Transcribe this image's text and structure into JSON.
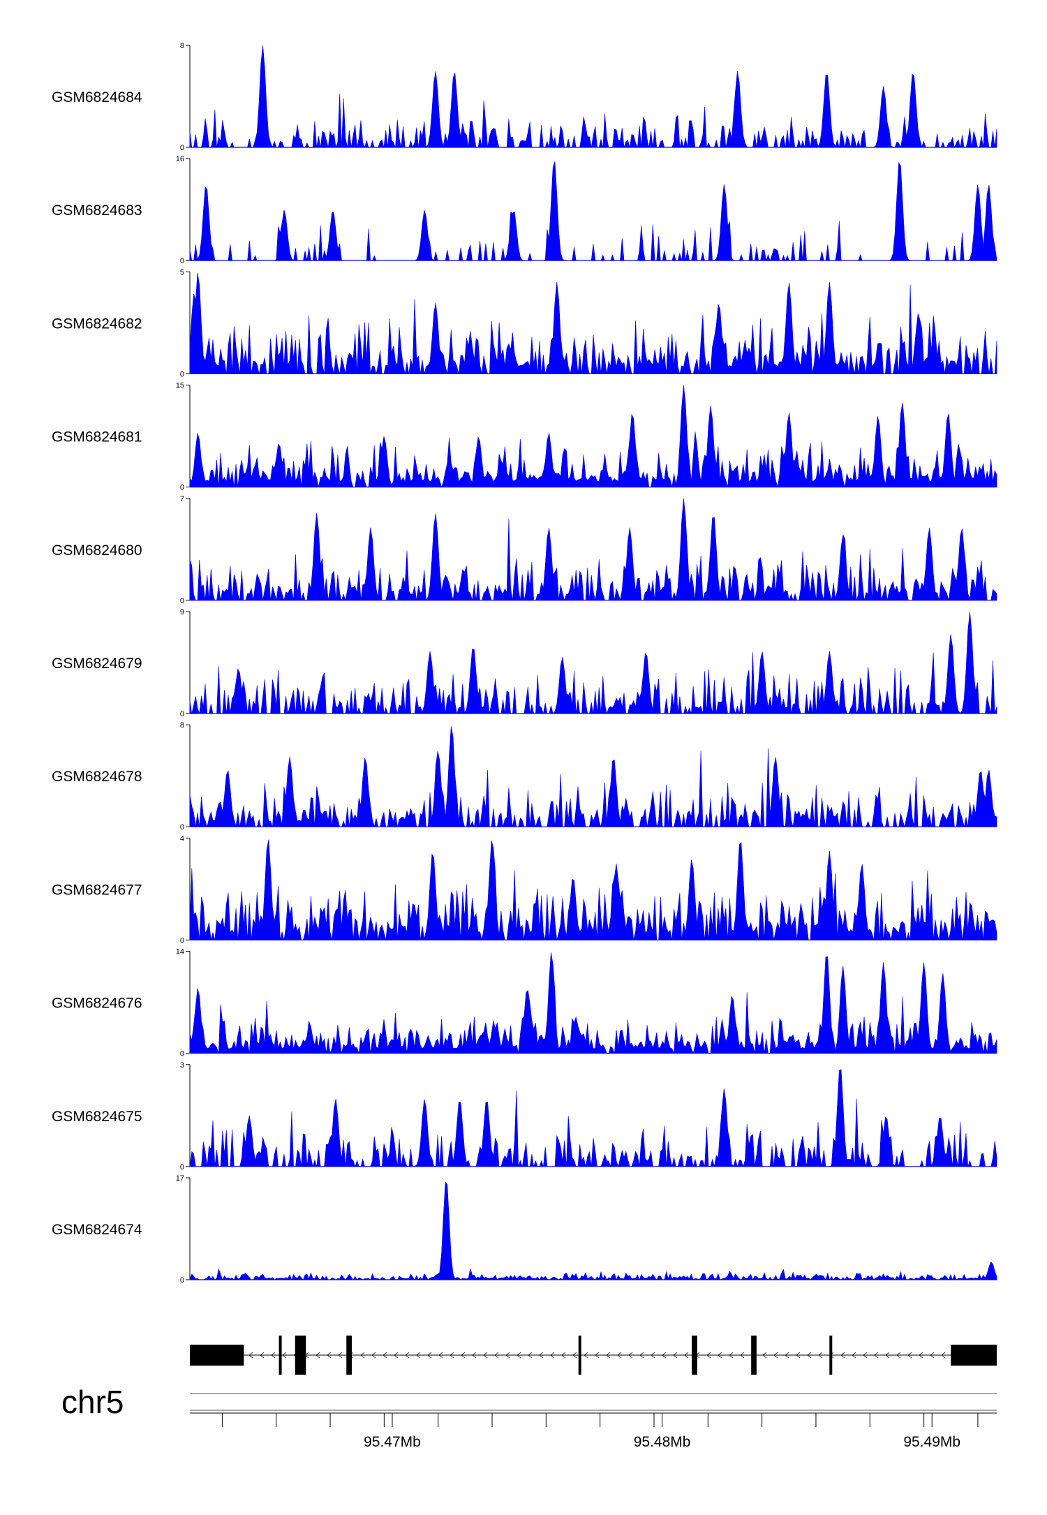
{
  "chart_data": {
    "type": "area",
    "chromosome": "chr5",
    "x_unit": "Mb",
    "xlim": [
      95.4625,
      95.4924
    ],
    "axis": {
      "major_ticks": [
        95.47,
        95.48,
        95.49
      ],
      "major_labels": [
        "95.47Mb",
        "95.48Mb",
        "95.49Mb"
      ],
      "minor_ticks": [
        95.4637,
        95.4657,
        95.4677,
        95.4697,
        95.4717,
        95.4737,
        95.4757,
        95.4777,
        95.4797,
        95.4817,
        95.4837,
        95.4857,
        95.4877,
        95.4897,
        95.4917
      ]
    },
    "tracks": [
      {
        "name": "GSM6824684",
        "ymax": 8,
        "ymin_label": "0",
        "ymax_label": "8",
        "seed": 11,
        "density": 0.55,
        "base": 0.28,
        "peaks": [
          [
            95.4652,
            8.0
          ],
          [
            95.4716,
            6.0
          ],
          [
            95.4723,
            6.0
          ],
          [
            95.4828,
            6.0
          ],
          [
            95.4861,
            6.0
          ],
          [
            95.4882,
            4.8
          ],
          [
            95.4893,
            6.0
          ]
        ]
      },
      {
        "name": "GSM6824683",
        "ymax": 16,
        "ymin_label": "0",
        "ymax_label": "16",
        "seed": 23,
        "density": 0.22,
        "base": 0.3,
        "peaks": [
          [
            95.4631,
            12.0
          ],
          [
            95.466,
            8.0
          ],
          [
            95.4678,
            8.0
          ],
          [
            95.4712,
            8.0
          ],
          [
            95.4745,
            8.0
          ],
          [
            95.476,
            16.0
          ],
          [
            95.4823,
            12.0
          ],
          [
            95.4888,
            16.0
          ],
          [
            95.4917,
            12.0
          ],
          [
            95.4921,
            12.0
          ]
        ]
      },
      {
        "name": "GSM6824682",
        "ymax": 5,
        "ymin_label": "0",
        "ymax_label": "5",
        "seed": 37,
        "density": 0.75,
        "base": 0.45,
        "peaks": [
          [
            95.4628,
            5.0
          ],
          [
            95.4716,
            3.5
          ],
          [
            95.4761,
            4.5
          ],
          [
            95.4821,
            3.5
          ],
          [
            95.4847,
            4.5
          ],
          [
            95.4862,
            4.5
          ],
          [
            95.4895,
            3.0
          ]
        ]
      },
      {
        "name": "GSM6824681",
        "ymax": 15,
        "ymin_label": "0",
        "ymax_label": "15",
        "seed": 41,
        "density": 0.95,
        "base": 0.35,
        "peaks": [
          [
            95.4628,
            8.0
          ],
          [
            95.4658,
            6.5
          ],
          [
            95.4697,
            7.5
          ],
          [
            95.4732,
            7.5
          ],
          [
            95.4758,
            8.0
          ],
          [
            95.4789,
            11.0
          ],
          [
            95.4808,
            15.0
          ],
          [
            95.4818,
            12.0
          ],
          [
            95.4847,
            11.0
          ],
          [
            95.488,
            10.5
          ],
          [
            95.4889,
            12.5
          ],
          [
            95.4906,
            11.0
          ]
        ]
      },
      {
        "name": "GSM6824680",
        "ymax": 7,
        "ymin_label": "0",
        "ymax_label": "7",
        "seed": 53,
        "density": 0.7,
        "base": 0.4,
        "peaks": [
          [
            95.4672,
            6.0
          ],
          [
            95.4692,
            5.0
          ],
          [
            95.4716,
            6.0
          ],
          [
            95.4758,
            5.0
          ],
          [
            95.4788,
            5.0
          ],
          [
            95.4808,
            7.0
          ],
          [
            95.4819,
            6.0
          ],
          [
            95.4867,
            4.5
          ],
          [
            95.4899,
            5.0
          ],
          [
            95.4911,
            5.0
          ]
        ]
      },
      {
        "name": "GSM6824679",
        "ymax": 9,
        "ymin_label": "0",
        "ymax_label": "9",
        "seed": 67,
        "density": 0.65,
        "base": 0.35,
        "peaks": [
          [
            95.4643,
            4.0
          ],
          [
            95.4714,
            5.5
          ],
          [
            95.473,
            6.0
          ],
          [
            95.4763,
            5.0
          ],
          [
            95.4794,
            5.5
          ],
          [
            95.4837,
            5.5
          ],
          [
            95.4862,
            5.5
          ],
          [
            95.4907,
            7.0
          ],
          [
            95.4914,
            9.0
          ]
        ]
      },
      {
        "name": "GSM6824678",
        "ymax": 8,
        "ymin_label": "0",
        "ymax_label": "8",
        "seed": 79,
        "density": 0.65,
        "base": 0.35,
        "peaks": [
          [
            95.4639,
            4.5
          ],
          [
            95.4662,
            5.5
          ],
          [
            95.469,
            5.5
          ],
          [
            95.4717,
            6.0
          ],
          [
            95.4722,
            8.0
          ],
          [
            95.4782,
            5.5
          ],
          [
            95.4842,
            5.5
          ],
          [
            95.4918,
            4.5
          ],
          [
            95.4921,
            4.5
          ]
        ]
      },
      {
        "name": "GSM6824677",
        "ymax": 4,
        "ymin_label": "0",
        "ymax_label": "4",
        "seed": 83,
        "density": 0.85,
        "base": 0.45,
        "peaks": [
          [
            95.4654,
            4.0
          ],
          [
            95.4715,
            3.5
          ],
          [
            95.4737,
            4.0
          ],
          [
            95.4767,
            2.5
          ],
          [
            95.4783,
            3.0
          ],
          [
            95.4811,
            3.2
          ],
          [
            95.4829,
            4.0
          ],
          [
            95.4862,
            3.5
          ],
          [
            95.4874,
            3.0
          ]
        ]
      },
      {
        "name": "GSM6824676",
        "ymax": 14,
        "ymin_label": "0",
        "ymax_label": "14",
        "seed": 97,
        "density": 0.95,
        "base": 0.3,
        "peaks": [
          [
            95.4628,
            9.0
          ],
          [
            95.475,
            9.0
          ],
          [
            95.4759,
            14.0
          ],
          [
            95.4768,
            5.0
          ],
          [
            95.4826,
            8.0
          ],
          [
            95.4861,
            14.0
          ],
          [
            95.4867,
            12.0
          ],
          [
            95.4882,
            12.5
          ],
          [
            95.4897,
            12.5
          ],
          [
            95.4904,
            11.0
          ]
        ]
      },
      {
        "name": "GSM6824675",
        "ymax": 3,
        "ymin_label": "0",
        "ymax_label": "3",
        "seed": 101,
        "density": 0.55,
        "base": 0.35,
        "peaks": [
          [
            95.4647,
            1.5
          ],
          [
            95.4679,
            2.0
          ],
          [
            95.4712,
            2.0
          ],
          [
            95.4725,
            2.0
          ],
          [
            95.4735,
            2.0
          ],
          [
            95.4823,
            2.3
          ],
          [
            95.4866,
            3.0
          ],
          [
            95.4883,
            1.5
          ],
          [
            95.4903,
            1.5
          ]
        ]
      },
      {
        "name": "GSM6824674",
        "ymax": 17,
        "ymin_label": "0",
        "ymax_label": "17",
        "seed": 113,
        "density": 0.85,
        "base": 0.06,
        "peaks": [
          [
            95.472,
            17.0
          ],
          [
            95.4922,
            3.0
          ]
        ]
      }
    ],
    "gene": {
      "strand": "-",
      "start": 95.4625,
      "end": 95.4924,
      "exons": [
        [
          95.4625,
          95.4645
        ],
        [
          95.4658,
          95.4659
        ],
        [
          95.4664,
          95.4668
        ],
        [
          95.4683,
          95.4685
        ],
        [
          95.4769,
          95.477
        ],
        [
          95.4811,
          95.4813
        ],
        [
          95.4833,
          95.4835
        ],
        [
          95.4862,
          95.4863
        ],
        [
          95.4907,
          95.4924
        ]
      ]
    },
    "title": "",
    "xlabel": "",
    "ylabel": ""
  }
}
